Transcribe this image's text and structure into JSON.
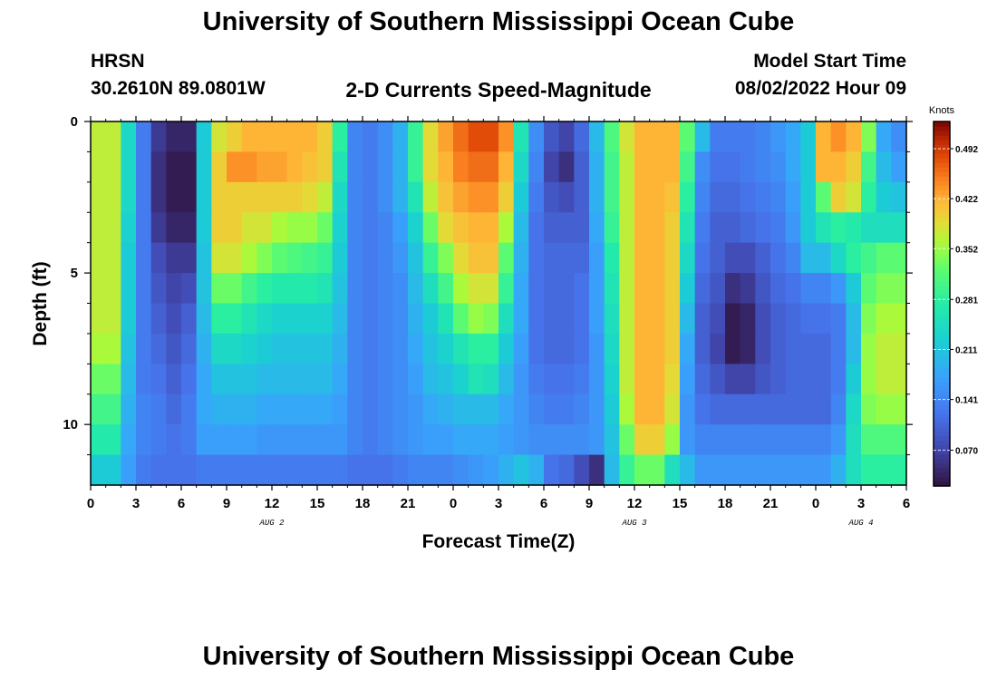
{
  "page_title": "University of Southern Mississippi Ocean Cube",
  "station": {
    "name": "HRSN",
    "coords": "30.2610N  89.0801W"
  },
  "plot_title": "2-D Currents Speed-Magnitude",
  "model": {
    "label": "Model Start Time",
    "value": "08/02/2022 Hour 09"
  },
  "footer_title": "University of Southern Mississippi Ocean Cube",
  "chart_data": {
    "type": "heatmap",
    "title": "2-D Currents Speed-Magnitude",
    "xlabel": "Forecast Time(Z)",
    "ylabel": "Depth (ft)",
    "x_units": "hours from 0Z Aug 2",
    "xlim": [
      0,
      54
    ],
    "ylim": [
      12,
      0
    ],
    "y_reversed": true,
    "x_tick_values": [
      0,
      3,
      6,
      9,
      12,
      15,
      18,
      21,
      24,
      27,
      30,
      33,
      36,
      39,
      42,
      45,
      48,
      51,
      54
    ],
    "x_tick_labels": [
      "0",
      "3",
      "6",
      "9",
      "12",
      "15",
      "18",
      "21",
      "0",
      "3",
      "6",
      "9",
      "12",
      "15",
      "18",
      "21",
      "0",
      "3",
      "6"
    ],
    "date_labels": [
      {
        "text": "AUG 2",
        "x": 12
      },
      {
        "text": "AUG 3",
        "x": 36
      },
      {
        "text": "AUG 4",
        "x": 51
      }
    ],
    "y_ticks": [
      0,
      5,
      10
    ],
    "colorbar": {
      "label": "Knots",
      "ticks": [
        0.07,
        0.141,
        0.211,
        0.281,
        0.352,
        0.422,
        0.492
      ],
      "tick_labels": [
        "0.070",
        "0.141",
        "0.211",
        "0.281",
        "0.352",
        "0.422",
        "0.492"
      ],
      "range": [
        0.02,
        0.53
      ]
    },
    "x": [
      0.5,
      1.5,
      2.5,
      3.5,
      4.5,
      5.5,
      6.5,
      7.5,
      8.5,
      9.5,
      10.5,
      11.5,
      12.5,
      13.5,
      14.5,
      15.5,
      16.5,
      17.5,
      18.5,
      19.5,
      20.5,
      21.5,
      22.5,
      23.5,
      24.5,
      25.5,
      26.5,
      27.5,
      28.5,
      29.5,
      30.5,
      31.5,
      32.5,
      33.5,
      34.5,
      35.5,
      36.5,
      37.5,
      38.5,
      39.5,
      40.5,
      41.5,
      42.5,
      43.5,
      44.5,
      45.5,
      46.5,
      47.5,
      48.5,
      49.5,
      50.5,
      51.5,
      52.5,
      53.5
    ],
    "y": [
      0.5,
      1.5,
      2.5,
      3.5,
      4.5,
      5.5,
      6.5,
      7.5,
      8.5,
      9.5,
      10.5,
      11.5
    ],
    "z": [
      [
        0.37,
        0.37,
        0.24,
        0.13,
        0.06,
        0.04,
        0.04,
        0.22,
        0.38,
        0.4,
        0.42,
        0.42,
        0.42,
        0.42,
        0.42,
        0.4,
        0.28,
        0.14,
        0.13,
        0.15,
        0.19,
        0.29,
        0.39,
        0.43,
        0.46,
        0.48,
        0.48,
        0.44,
        0.26,
        0.15,
        0.09,
        0.07,
        0.11,
        0.2,
        0.31,
        0.38,
        0.42,
        0.42,
        0.42,
        0.32,
        0.2,
        0.13,
        0.13,
        0.13,
        0.14,
        0.16,
        0.18,
        0.22,
        0.42,
        0.44,
        0.42,
        0.34,
        0.18,
        0.15
      ],
      [
        0.37,
        0.37,
        0.24,
        0.13,
        0.05,
        0.03,
        0.03,
        0.22,
        0.4,
        0.44,
        0.44,
        0.43,
        0.43,
        0.42,
        0.41,
        0.4,
        0.26,
        0.14,
        0.13,
        0.15,
        0.19,
        0.29,
        0.39,
        0.42,
        0.45,
        0.46,
        0.46,
        0.42,
        0.24,
        0.14,
        0.07,
        0.05,
        0.1,
        0.19,
        0.3,
        0.37,
        0.42,
        0.42,
        0.42,
        0.3,
        0.15,
        0.12,
        0.12,
        0.13,
        0.14,
        0.15,
        0.18,
        0.22,
        0.42,
        0.42,
        0.4,
        0.3,
        0.2,
        0.17
      ],
      [
        0.37,
        0.37,
        0.24,
        0.13,
        0.05,
        0.03,
        0.03,
        0.22,
        0.4,
        0.4,
        0.4,
        0.4,
        0.4,
        0.4,
        0.39,
        0.37,
        0.24,
        0.14,
        0.13,
        0.15,
        0.19,
        0.26,
        0.37,
        0.41,
        0.43,
        0.44,
        0.44,
        0.4,
        0.22,
        0.13,
        0.09,
        0.08,
        0.1,
        0.19,
        0.3,
        0.37,
        0.42,
        0.42,
        0.41,
        0.28,
        0.14,
        0.11,
        0.11,
        0.12,
        0.13,
        0.14,
        0.17,
        0.22,
        0.32,
        0.4,
        0.38,
        0.28,
        0.22,
        0.21
      ],
      [
        0.37,
        0.37,
        0.23,
        0.13,
        0.06,
        0.04,
        0.04,
        0.22,
        0.4,
        0.4,
        0.38,
        0.38,
        0.36,
        0.35,
        0.35,
        0.33,
        0.23,
        0.14,
        0.13,
        0.14,
        0.17,
        0.23,
        0.33,
        0.39,
        0.41,
        0.42,
        0.42,
        0.36,
        0.2,
        0.12,
        0.1,
        0.1,
        0.1,
        0.18,
        0.29,
        0.37,
        0.42,
        0.42,
        0.4,
        0.26,
        0.13,
        0.1,
        0.1,
        0.11,
        0.12,
        0.13,
        0.16,
        0.22,
        0.26,
        0.28,
        0.27,
        0.25,
        0.25,
        0.25
      ],
      [
        0.37,
        0.37,
        0.22,
        0.13,
        0.08,
        0.06,
        0.06,
        0.21,
        0.38,
        0.38,
        0.36,
        0.34,
        0.32,
        0.31,
        0.3,
        0.29,
        0.22,
        0.14,
        0.13,
        0.14,
        0.16,
        0.21,
        0.29,
        0.34,
        0.39,
        0.41,
        0.41,
        0.32,
        0.19,
        0.12,
        0.11,
        0.11,
        0.11,
        0.17,
        0.27,
        0.37,
        0.42,
        0.42,
        0.4,
        0.24,
        0.12,
        0.1,
        0.08,
        0.08,
        0.1,
        0.12,
        0.14,
        0.2,
        0.2,
        0.24,
        0.28,
        0.3,
        0.32,
        0.32
      ],
      [
        0.37,
        0.37,
        0.22,
        0.13,
        0.09,
        0.07,
        0.08,
        0.21,
        0.33,
        0.33,
        0.3,
        0.28,
        0.27,
        0.27,
        0.27,
        0.26,
        0.21,
        0.14,
        0.13,
        0.14,
        0.15,
        0.2,
        0.25,
        0.3,
        0.36,
        0.38,
        0.38,
        0.29,
        0.18,
        0.12,
        0.11,
        0.11,
        0.12,
        0.17,
        0.26,
        0.37,
        0.42,
        0.42,
        0.4,
        0.22,
        0.11,
        0.09,
        0.05,
        0.06,
        0.09,
        0.11,
        0.12,
        0.14,
        0.14,
        0.16,
        0.22,
        0.32,
        0.34,
        0.34
      ],
      [
        0.37,
        0.37,
        0.22,
        0.13,
        0.1,
        0.08,
        0.1,
        0.2,
        0.28,
        0.28,
        0.26,
        0.24,
        0.23,
        0.23,
        0.23,
        0.23,
        0.2,
        0.14,
        0.13,
        0.14,
        0.15,
        0.19,
        0.22,
        0.26,
        0.32,
        0.35,
        0.34,
        0.25,
        0.18,
        0.12,
        0.11,
        0.11,
        0.12,
        0.17,
        0.25,
        0.37,
        0.42,
        0.42,
        0.4,
        0.2,
        0.1,
        0.08,
        0.03,
        0.04,
        0.08,
        0.1,
        0.11,
        0.12,
        0.12,
        0.13,
        0.2,
        0.34,
        0.36,
        0.36
      ],
      [
        0.36,
        0.36,
        0.21,
        0.13,
        0.11,
        0.09,
        0.11,
        0.19,
        0.24,
        0.24,
        0.23,
        0.22,
        0.21,
        0.21,
        0.21,
        0.21,
        0.19,
        0.14,
        0.13,
        0.14,
        0.15,
        0.18,
        0.21,
        0.23,
        0.26,
        0.28,
        0.28,
        0.22,
        0.17,
        0.12,
        0.11,
        0.11,
        0.12,
        0.16,
        0.24,
        0.37,
        0.42,
        0.42,
        0.4,
        0.18,
        0.1,
        0.07,
        0.03,
        0.04,
        0.08,
        0.1,
        0.11,
        0.11,
        0.11,
        0.13,
        0.2,
        0.35,
        0.37,
        0.37
      ],
      [
        0.33,
        0.33,
        0.2,
        0.13,
        0.12,
        0.1,
        0.12,
        0.18,
        0.21,
        0.21,
        0.21,
        0.2,
        0.2,
        0.2,
        0.2,
        0.2,
        0.18,
        0.14,
        0.13,
        0.14,
        0.15,
        0.17,
        0.2,
        0.21,
        0.23,
        0.26,
        0.25,
        0.2,
        0.16,
        0.13,
        0.12,
        0.12,
        0.13,
        0.16,
        0.23,
        0.37,
        0.42,
        0.42,
        0.39,
        0.17,
        0.11,
        0.09,
        0.07,
        0.07,
        0.09,
        0.1,
        0.11,
        0.11,
        0.11,
        0.13,
        0.22,
        0.35,
        0.37,
        0.37
      ],
      [
        0.3,
        0.3,
        0.19,
        0.14,
        0.13,
        0.11,
        0.13,
        0.18,
        0.19,
        0.19,
        0.19,
        0.18,
        0.18,
        0.18,
        0.18,
        0.18,
        0.17,
        0.14,
        0.13,
        0.14,
        0.15,
        0.16,
        0.18,
        0.19,
        0.2,
        0.2,
        0.2,
        0.18,
        0.16,
        0.14,
        0.13,
        0.13,
        0.14,
        0.16,
        0.22,
        0.36,
        0.42,
        0.42,
        0.38,
        0.16,
        0.12,
        0.11,
        0.11,
        0.11,
        0.11,
        0.11,
        0.11,
        0.11,
        0.11,
        0.14,
        0.24,
        0.34,
        0.35,
        0.35
      ],
      [
        0.27,
        0.27,
        0.18,
        0.14,
        0.13,
        0.12,
        0.13,
        0.17,
        0.17,
        0.17,
        0.17,
        0.16,
        0.16,
        0.16,
        0.16,
        0.16,
        0.16,
        0.14,
        0.13,
        0.14,
        0.15,
        0.16,
        0.17,
        0.17,
        0.18,
        0.18,
        0.18,
        0.17,
        0.16,
        0.15,
        0.15,
        0.15,
        0.15,
        0.16,
        0.21,
        0.33,
        0.4,
        0.4,
        0.35,
        0.16,
        0.14,
        0.14,
        0.14,
        0.14,
        0.14,
        0.14,
        0.14,
        0.14,
        0.14,
        0.16,
        0.25,
        0.31,
        0.31,
        0.31
      ],
      [
        0.22,
        0.22,
        0.17,
        0.13,
        0.12,
        0.12,
        0.12,
        0.13,
        0.13,
        0.13,
        0.13,
        0.13,
        0.13,
        0.13,
        0.13,
        0.13,
        0.13,
        0.12,
        0.12,
        0.12,
        0.13,
        0.14,
        0.14,
        0.14,
        0.15,
        0.16,
        0.17,
        0.19,
        0.21,
        0.19,
        0.12,
        0.11,
        0.08,
        0.05,
        0.2,
        0.29,
        0.33,
        0.33,
        0.25,
        0.2,
        0.16,
        0.16,
        0.16,
        0.16,
        0.16,
        0.16,
        0.16,
        0.16,
        0.16,
        0.19,
        0.25,
        0.28,
        0.28,
        0.28
      ]
    ]
  }
}
